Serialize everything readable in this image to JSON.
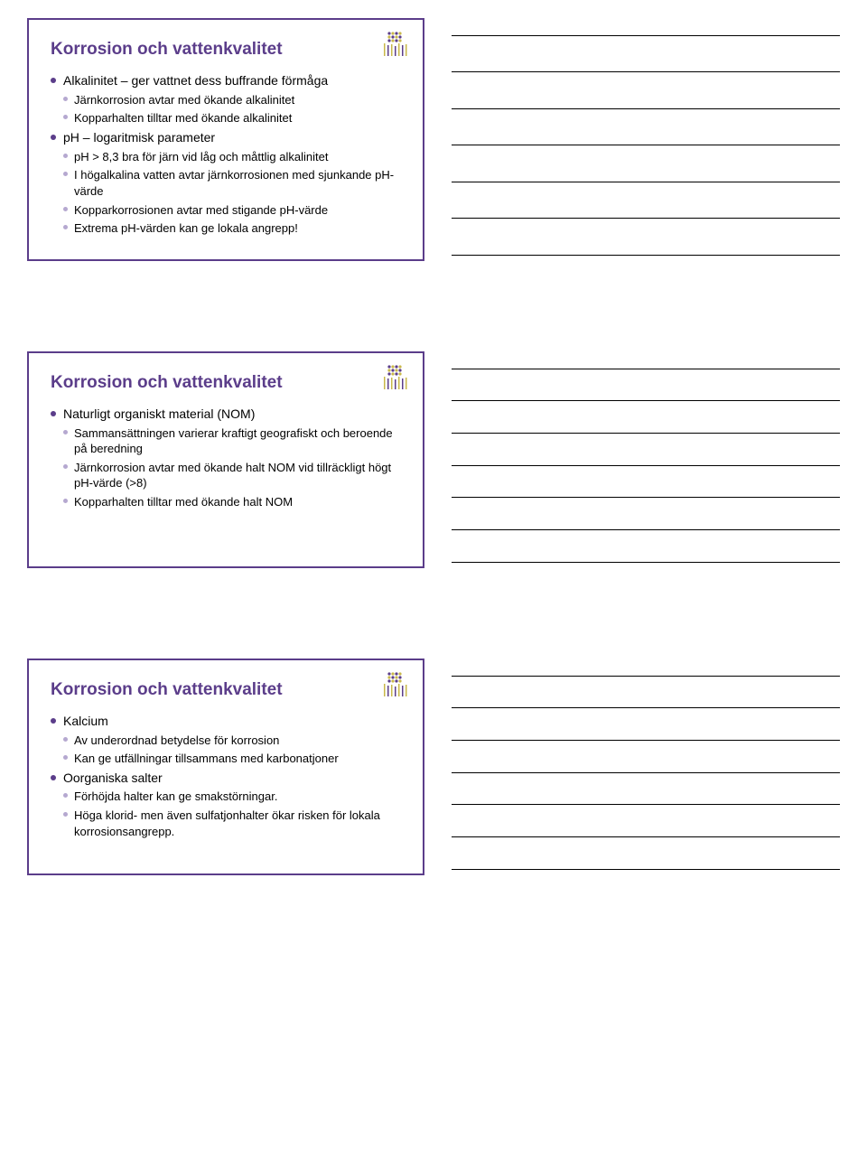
{
  "colors": {
    "accent": "#5b3d8a",
    "sub_bullet": "#b5a8d0",
    "logo_dots_dark": "#5b3d8a",
    "logo_dots_light": "#c9b84a",
    "text": "#000000",
    "border": "#5b3d8a",
    "background": "#ffffff",
    "note_line": "#000000"
  },
  "slides": [
    {
      "title": "Korrosion och vattenkvalitet",
      "items": [
        {
          "text": "Alkalinitet – ger vattnet dess buffrande förmåga",
          "sub": [
            "Järnkorrosion avtar med ökande alkalinitet",
            "Kopparhalten tilltar med ökande alkalinitet"
          ]
        },
        {
          "text": "pH – logaritmisk parameter",
          "sub": [
            "pH > 8,3 bra för järn vid låg och måttlig alkalinitet",
            "I högalkalina vatten avtar järnkorrosionen med sjunkande pH-värde",
            "Kopparkorrosionen avtar med stigande pH-värde",
            "Extrema pH-värden kan ge lokala angrepp!"
          ]
        }
      ],
      "note_lines": 7
    },
    {
      "title": "Korrosion och vattenkvalitet",
      "items": [
        {
          "text": "Naturligt organiskt material (NOM)",
          "sub": [
            "Sammansättningen varierar kraftigt geografiskt och beroende på beredning",
            "Järnkorrosion avtar med ökande halt NOM vid tillräckligt högt pH-värde (>8)",
            "Kopparhalten tilltar med ökande halt NOM"
          ]
        }
      ],
      "note_lines": 7
    },
    {
      "title": "Korrosion och vattenkvalitet",
      "items": [
        {
          "text": "Kalcium",
          "sub": [
            "Av underordnad betydelse för korrosion",
            "Kan ge utfällningar tillsammans med karbonatjoner"
          ]
        },
        {
          "text": "Oorganiska salter",
          "sub": [
            "Förhöjda halter kan ge smakstörningar.",
            "Höga klorid- men även sulfatjonhalter ökar risken för lokala korrosionsangrepp."
          ]
        }
      ],
      "note_lines": 7
    }
  ]
}
